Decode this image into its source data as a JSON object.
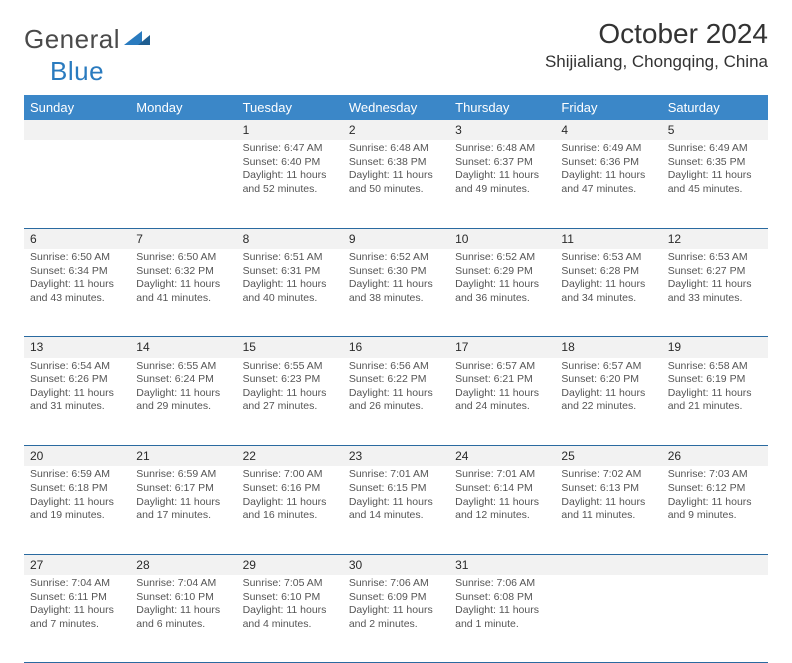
{
  "brand": {
    "part1": "General",
    "part2": "Blue"
  },
  "title": "October 2024",
  "location": "Shijialiang, Chongqing, China",
  "colors": {
    "header_blue": "#3b87c8",
    "border_blue": "#2a6aa0",
    "row_band": "#f2f2f2",
    "text": "#333333",
    "muted": "#555555",
    "logo_blue": "#2a7bbf"
  },
  "weekdays": [
    "Sunday",
    "Monday",
    "Tuesday",
    "Wednesday",
    "Thursday",
    "Friday",
    "Saturday"
  ],
  "weeks": [
    [
      null,
      null,
      {
        "num": "1",
        "sunrise": "Sunrise: 6:47 AM",
        "sunset": "Sunset: 6:40 PM",
        "daylight": "Daylight: 11 hours and 52 minutes."
      },
      {
        "num": "2",
        "sunrise": "Sunrise: 6:48 AM",
        "sunset": "Sunset: 6:38 PM",
        "daylight": "Daylight: 11 hours and 50 minutes."
      },
      {
        "num": "3",
        "sunrise": "Sunrise: 6:48 AM",
        "sunset": "Sunset: 6:37 PM",
        "daylight": "Daylight: 11 hours and 49 minutes."
      },
      {
        "num": "4",
        "sunrise": "Sunrise: 6:49 AM",
        "sunset": "Sunset: 6:36 PM",
        "daylight": "Daylight: 11 hours and 47 minutes."
      },
      {
        "num": "5",
        "sunrise": "Sunrise: 6:49 AM",
        "sunset": "Sunset: 6:35 PM",
        "daylight": "Daylight: 11 hours and 45 minutes."
      }
    ],
    [
      {
        "num": "6",
        "sunrise": "Sunrise: 6:50 AM",
        "sunset": "Sunset: 6:34 PM",
        "daylight": "Daylight: 11 hours and 43 minutes."
      },
      {
        "num": "7",
        "sunrise": "Sunrise: 6:50 AM",
        "sunset": "Sunset: 6:32 PM",
        "daylight": "Daylight: 11 hours and 41 minutes."
      },
      {
        "num": "8",
        "sunrise": "Sunrise: 6:51 AM",
        "sunset": "Sunset: 6:31 PM",
        "daylight": "Daylight: 11 hours and 40 minutes."
      },
      {
        "num": "9",
        "sunrise": "Sunrise: 6:52 AM",
        "sunset": "Sunset: 6:30 PM",
        "daylight": "Daylight: 11 hours and 38 minutes."
      },
      {
        "num": "10",
        "sunrise": "Sunrise: 6:52 AM",
        "sunset": "Sunset: 6:29 PM",
        "daylight": "Daylight: 11 hours and 36 minutes."
      },
      {
        "num": "11",
        "sunrise": "Sunrise: 6:53 AM",
        "sunset": "Sunset: 6:28 PM",
        "daylight": "Daylight: 11 hours and 34 minutes."
      },
      {
        "num": "12",
        "sunrise": "Sunrise: 6:53 AM",
        "sunset": "Sunset: 6:27 PM",
        "daylight": "Daylight: 11 hours and 33 minutes."
      }
    ],
    [
      {
        "num": "13",
        "sunrise": "Sunrise: 6:54 AM",
        "sunset": "Sunset: 6:26 PM",
        "daylight": "Daylight: 11 hours and 31 minutes."
      },
      {
        "num": "14",
        "sunrise": "Sunrise: 6:55 AM",
        "sunset": "Sunset: 6:24 PM",
        "daylight": "Daylight: 11 hours and 29 minutes."
      },
      {
        "num": "15",
        "sunrise": "Sunrise: 6:55 AM",
        "sunset": "Sunset: 6:23 PM",
        "daylight": "Daylight: 11 hours and 27 minutes."
      },
      {
        "num": "16",
        "sunrise": "Sunrise: 6:56 AM",
        "sunset": "Sunset: 6:22 PM",
        "daylight": "Daylight: 11 hours and 26 minutes."
      },
      {
        "num": "17",
        "sunrise": "Sunrise: 6:57 AM",
        "sunset": "Sunset: 6:21 PM",
        "daylight": "Daylight: 11 hours and 24 minutes."
      },
      {
        "num": "18",
        "sunrise": "Sunrise: 6:57 AM",
        "sunset": "Sunset: 6:20 PM",
        "daylight": "Daylight: 11 hours and 22 minutes."
      },
      {
        "num": "19",
        "sunrise": "Sunrise: 6:58 AM",
        "sunset": "Sunset: 6:19 PM",
        "daylight": "Daylight: 11 hours and 21 minutes."
      }
    ],
    [
      {
        "num": "20",
        "sunrise": "Sunrise: 6:59 AM",
        "sunset": "Sunset: 6:18 PM",
        "daylight": "Daylight: 11 hours and 19 minutes."
      },
      {
        "num": "21",
        "sunrise": "Sunrise: 6:59 AM",
        "sunset": "Sunset: 6:17 PM",
        "daylight": "Daylight: 11 hours and 17 minutes."
      },
      {
        "num": "22",
        "sunrise": "Sunrise: 7:00 AM",
        "sunset": "Sunset: 6:16 PM",
        "daylight": "Daylight: 11 hours and 16 minutes."
      },
      {
        "num": "23",
        "sunrise": "Sunrise: 7:01 AM",
        "sunset": "Sunset: 6:15 PM",
        "daylight": "Daylight: 11 hours and 14 minutes."
      },
      {
        "num": "24",
        "sunrise": "Sunrise: 7:01 AM",
        "sunset": "Sunset: 6:14 PM",
        "daylight": "Daylight: 11 hours and 12 minutes."
      },
      {
        "num": "25",
        "sunrise": "Sunrise: 7:02 AM",
        "sunset": "Sunset: 6:13 PM",
        "daylight": "Daylight: 11 hours and 11 minutes."
      },
      {
        "num": "26",
        "sunrise": "Sunrise: 7:03 AM",
        "sunset": "Sunset: 6:12 PM",
        "daylight": "Daylight: 11 hours and 9 minutes."
      }
    ],
    [
      {
        "num": "27",
        "sunrise": "Sunrise: 7:04 AM",
        "sunset": "Sunset: 6:11 PM",
        "daylight": "Daylight: 11 hours and 7 minutes."
      },
      {
        "num": "28",
        "sunrise": "Sunrise: 7:04 AM",
        "sunset": "Sunset: 6:10 PM",
        "daylight": "Daylight: 11 hours and 6 minutes."
      },
      {
        "num": "29",
        "sunrise": "Sunrise: 7:05 AM",
        "sunset": "Sunset: 6:10 PM",
        "daylight": "Daylight: 11 hours and 4 minutes."
      },
      {
        "num": "30",
        "sunrise": "Sunrise: 7:06 AM",
        "sunset": "Sunset: 6:09 PM",
        "daylight": "Daylight: 11 hours and 2 minutes."
      },
      {
        "num": "31",
        "sunrise": "Sunrise: 7:06 AM",
        "sunset": "Sunset: 6:08 PM",
        "daylight": "Daylight: 11 hours and 1 minute."
      },
      null,
      null
    ]
  ]
}
